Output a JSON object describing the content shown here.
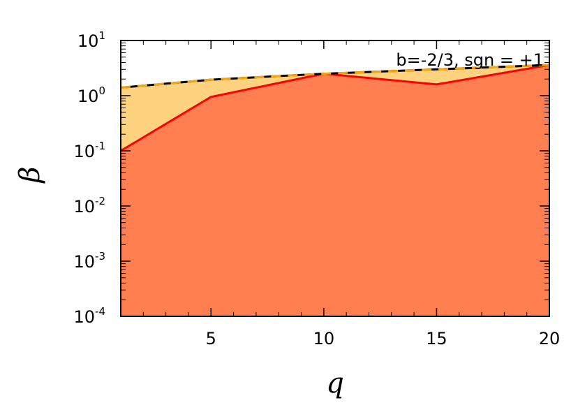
{
  "chart_data": {
    "type": "area",
    "xlabel": "q",
    "ylabel": "β",
    "xlim": [
      1,
      20
    ],
    "ylim": [
      0.0001,
      10
    ],
    "yscale": "log",
    "grid": false,
    "annotation": "b=-2/3, sgn = +1",
    "x_ticks": [
      5,
      10,
      15,
      20
    ],
    "y_ticks": [
      {
        "value": 0.0001,
        "base": "10",
        "exp": "-4"
      },
      {
        "value": 0.001,
        "base": "10",
        "exp": "-3"
      },
      {
        "value": 0.01,
        "base": "10",
        "exp": "-2"
      },
      {
        "value": 0.1,
        "base": "10",
        "exp": "-1"
      },
      {
        "value": 1,
        "base": "10",
        "exp": "0"
      },
      {
        "value": 10,
        "base": "10",
        "exp": "1"
      }
    ],
    "series": [
      {
        "x": [
          1,
          5,
          10,
          15,
          20
        ],
        "y": [
          0.1,
          0.95,
          2.5,
          1.6,
          3.6
        ],
        "color": "#ff0000",
        "fill": "#ff7f50",
        "style": "solid"
      },
      {
        "x": [
          1,
          5,
          10,
          15,
          20
        ],
        "y": [
          1.4,
          1.95,
          2.5,
          3.0,
          3.6
        ],
        "color": "#000000",
        "dash_color": "#ffa500",
        "fill": "#ffd27f",
        "style": "dashed"
      }
    ]
  }
}
